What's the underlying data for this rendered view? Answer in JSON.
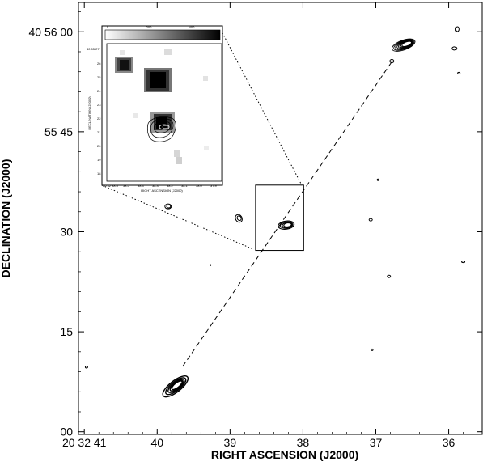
{
  "chart_data": {
    "type": "contour-map",
    "xlabel": "RIGHT ASCENSION (J2000)",
    "ylabel": "DECLINATION (J2000)",
    "x_ticks": [
      {
        "value": 41,
        "label": "20 32 41"
      },
      {
        "value": 40,
        "label": "40"
      },
      {
        "value": 39,
        "label": "39"
      },
      {
        "value": 38,
        "label": "38"
      },
      {
        "value": 37,
        "label": "37"
      },
      {
        "value": 36,
        "label": "36"
      }
    ],
    "y_ticks": [
      {
        "value": 60,
        "label": "40 56 00"
      },
      {
        "value": 45,
        "label": "55 45"
      },
      {
        "value": 30,
        "label": "30"
      },
      {
        "value": 15,
        "label": "15"
      },
      {
        "value": 0,
        "label": "00"
      }
    ],
    "xlim": [
      41.08,
      35.54
    ],
    "ylim": [
      -0.4,
      64.4
    ],
    "sources": [
      {
        "name": "north-lobe",
        "ra": 36.62,
        "dec": 58.0
      },
      {
        "name": "core",
        "ra": 38.23,
        "dec": 31.0
      },
      {
        "name": "south-lobe",
        "ra": 39.75,
        "dec": 6.8
      },
      {
        "name": "west-knot",
        "ra": 38.88,
        "dec": 32.0
      },
      {
        "name": "east-knot",
        "ra": 39.85,
        "dec": 33.8
      }
    ],
    "jet_axis": [
      {
        "ra": 39.65,
        "dec": 9.8
      },
      {
        "ra": 36.78,
        "dec": 55.5
      }
    ],
    "zoom_box": {
      "ra": [
        38.65,
        37.99
      ],
      "dec": [
        27.2,
        37.0
      ]
    },
    "inset": {
      "colorbar_ticks": [
        "0",
        "200",
        "400"
      ],
      "ylabel": "DECLINATION (J2000)",
      "xlabel": "RIGHT ASCENSION (J2000)",
      "y_top_label": "40 55 27",
      "y_ticks": [
        "26",
        "25",
        "24",
        "23",
        "22",
        "21",
        "20",
        "19",
        "18"
      ],
      "x_ticks": [
        "20 32 38.6",
        "38.5",
        "38.4",
        "38.3",
        "38.2",
        "38.1",
        "38.0",
        "37.9"
      ]
    }
  }
}
